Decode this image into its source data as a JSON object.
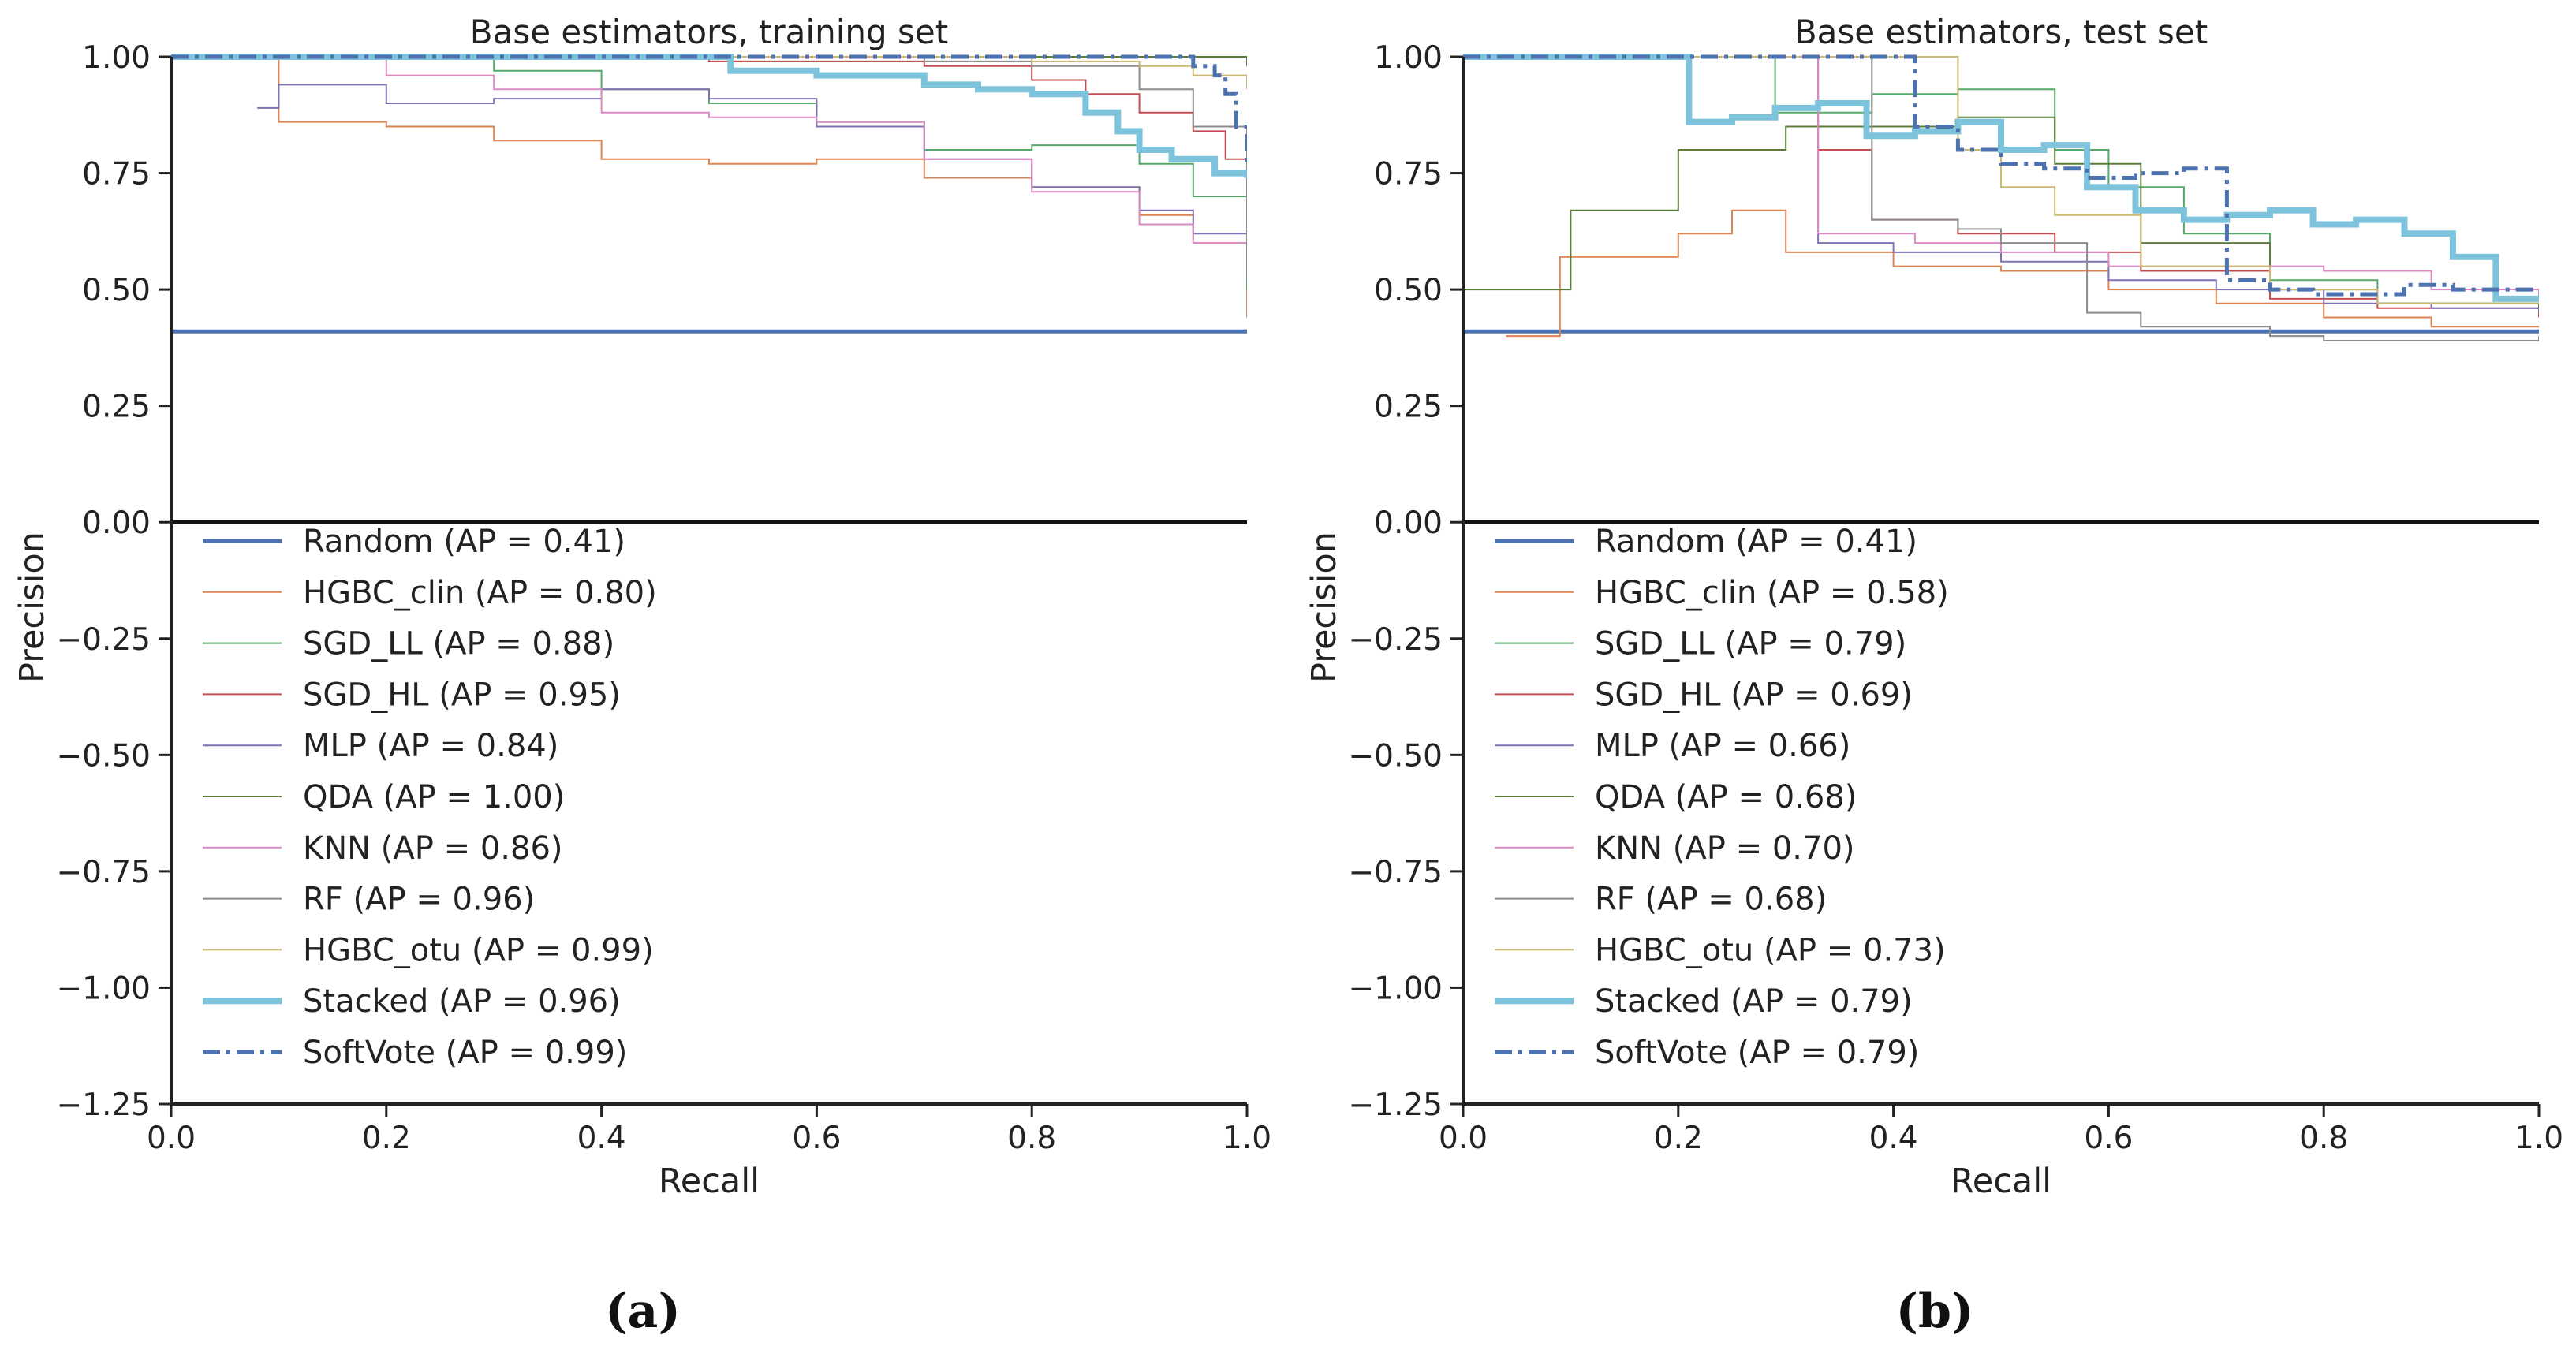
{
  "figure": {
    "caption_a": "(a)",
    "caption_b": "(b)"
  },
  "chart_data": [
    {
      "type": "line",
      "title": "Base estimators, training set",
      "xlabel": "Recall",
      "ylabel": "Precision",
      "xlim": [
        0.0,
        1.0
      ],
      "ylim": [
        -1.25,
        1.0
      ],
      "xticks": [
        "0.0",
        "0.2",
        "0.4",
        "0.6",
        "0.8",
        "1.0"
      ],
      "yticks": [
        "1.00",
        "0.75",
        "0.50",
        "0.25",
        "0.00",
        "−0.25",
        "−0.50",
        "−0.75",
        "−1.00",
        "−1.25"
      ],
      "legend_position": "lower-left",
      "series": [
        {
          "name": "Random (AP = 0.41)",
          "color": "#4c72b0",
          "style": "solid",
          "width": 5,
          "x": [
            0.0,
            1.0
          ],
          "y": [
            0.41,
            0.41
          ]
        },
        {
          "name": "HGBC_clin (AP = 0.80)",
          "color": "#dd8452",
          "style": "solid",
          "width": 2,
          "x": [
            0.0,
            0.1,
            0.2,
            0.3,
            0.4,
            0.5,
            0.6,
            0.7,
            0.8,
            0.9,
            0.95,
            1.0
          ],
          "y": [
            1.0,
            0.86,
            0.85,
            0.82,
            0.78,
            0.77,
            0.78,
            0.74,
            0.72,
            0.66,
            0.6,
            0.44
          ]
        },
        {
          "name": "SGD_LL (AP = 0.88)",
          "color": "#55a868",
          "style": "solid",
          "width": 2,
          "x": [
            0.0,
            0.3,
            0.4,
            0.5,
            0.6,
            0.7,
            0.8,
            0.9,
            0.95,
            1.0
          ],
          "y": [
            1.0,
            0.97,
            0.93,
            0.9,
            0.86,
            0.8,
            0.81,
            0.77,
            0.7,
            0.5
          ]
        },
        {
          "name": "SGD_HL (AP = 0.95)",
          "color": "#c44e52",
          "style": "solid",
          "width": 2,
          "x": [
            0.0,
            0.3,
            0.5,
            0.7,
            0.8,
            0.85,
            0.9,
            0.95,
            0.98,
            1.0
          ],
          "y": [
            1.0,
            1.0,
            0.99,
            0.98,
            0.95,
            0.92,
            0.88,
            0.84,
            0.78,
            0.72
          ]
        },
        {
          "name": "MLP (AP = 0.84)",
          "color": "#8172b3",
          "style": "solid",
          "width": 2,
          "x": [
            0.08,
            0.1,
            0.2,
            0.3,
            0.4,
            0.5,
            0.6,
            0.7,
            0.8,
            0.9,
            0.95,
            1.0
          ],
          "y": [
            0.89,
            0.94,
            0.9,
            0.91,
            0.93,
            0.91,
            0.85,
            0.78,
            0.72,
            0.67,
            0.62,
            0.55
          ]
        },
        {
          "name": "QDA (AP = 1.00)",
          "color": "#5a7d3a",
          "style": "solid",
          "width": 2,
          "x": [
            0.0,
            1.0
          ],
          "y": [
            1.0,
            0.98
          ]
        },
        {
          "name": "KNN (AP = 0.86)",
          "color": "#da8bc3",
          "style": "solid",
          "width": 2,
          "x": [
            0.0,
            0.2,
            0.3,
            0.4,
            0.5,
            0.6,
            0.7,
            0.8,
            0.9,
            0.95,
            1.0
          ],
          "y": [
            1.0,
            0.96,
            0.93,
            0.88,
            0.87,
            0.86,
            0.78,
            0.71,
            0.64,
            0.6,
            0.56
          ]
        },
        {
          "name": "RF (AP = 0.96)",
          "color": "#8c8c8c",
          "style": "solid",
          "width": 2,
          "x": [
            0.0,
            0.5,
            0.7,
            0.8,
            0.9,
            0.95,
            1.0
          ],
          "y": [
            1.0,
            1.0,
            0.99,
            0.98,
            0.93,
            0.85,
            0.52
          ]
        },
        {
          "name": "HGBC_otu (AP = 0.99)",
          "color": "#ccb974",
          "style": "solid",
          "width": 2,
          "x": [
            0.0,
            0.6,
            0.8,
            0.9,
            0.95,
            1.0
          ],
          "y": [
            1.0,
            1.0,
            0.99,
            0.98,
            0.96,
            0.93
          ]
        },
        {
          "name": "Stacked (AP = 0.96)",
          "color": "#7ec3dc",
          "style": "solid",
          "width": 8,
          "x": [
            0.0,
            0.52,
            0.6,
            0.7,
            0.75,
            0.8,
            0.85,
            0.88,
            0.9,
            0.93,
            0.97,
            1.0
          ],
          "y": [
            1.0,
            0.97,
            0.96,
            0.94,
            0.93,
            0.92,
            0.88,
            0.84,
            0.8,
            0.78,
            0.75,
            0.74
          ]
        },
        {
          "name": "SoftVote (AP = 0.99)",
          "color": "#4c72b0",
          "style": "dashdot",
          "width": 5,
          "x": [
            0.0,
            0.9,
            0.95,
            0.97,
            0.98,
            0.99,
            1.0
          ],
          "y": [
            1.0,
            1.0,
            0.98,
            0.96,
            0.92,
            0.85,
            0.77
          ]
        }
      ]
    },
    {
      "type": "line",
      "title": "Base estimators, test set",
      "xlabel": "Recall",
      "ylabel": "Precision",
      "xlim": [
        0.0,
        1.0
      ],
      "ylim": [
        -1.25,
        1.0
      ],
      "xticks": [
        "0.0",
        "0.2",
        "0.4",
        "0.6",
        "0.8",
        "1.0"
      ],
      "yticks": [
        "1.00",
        "0.75",
        "0.50",
        "0.25",
        "0.00",
        "−0.25",
        "−0.50",
        "−0.75",
        "−1.00",
        "−1.25"
      ],
      "legend_position": "lower-left",
      "series": [
        {
          "name": "Random (AP = 0.41)",
          "color": "#4c72b0",
          "style": "solid",
          "width": 5,
          "x": [
            0.0,
            1.0
          ],
          "y": [
            0.41,
            0.41
          ]
        },
        {
          "name": "HGBC_clin (AP = 0.58)",
          "color": "#dd8452",
          "style": "solid",
          "width": 2,
          "x": [
            0.04,
            0.09,
            0.2,
            0.25,
            0.3,
            0.4,
            0.5,
            0.6,
            0.7,
            0.8,
            0.9,
            1.0
          ],
          "y": [
            0.4,
            0.57,
            0.62,
            0.67,
            0.58,
            0.55,
            0.54,
            0.5,
            0.47,
            0.44,
            0.42,
            0.42
          ]
        },
        {
          "name": "SGD_LL (AP = 0.79)",
          "color": "#55a868",
          "style": "solid",
          "width": 2,
          "x": [
            0.0,
            0.29,
            0.38,
            0.46,
            0.55,
            0.6,
            0.67,
            0.75,
            0.85,
            1.0
          ],
          "y": [
            1.0,
            0.88,
            0.92,
            0.93,
            0.8,
            0.72,
            0.62,
            0.52,
            0.47,
            0.46
          ]
        },
        {
          "name": "SGD_HL (AP = 0.69)",
          "color": "#c44e52",
          "style": "solid",
          "width": 2,
          "x": [
            0.0,
            0.33,
            0.38,
            0.46,
            0.55,
            0.63,
            0.75,
            0.85,
            1.0
          ],
          "y": [
            1.0,
            0.8,
            0.65,
            0.62,
            0.58,
            0.54,
            0.48,
            0.46,
            0.44
          ]
        },
        {
          "name": "MLP (AP = 0.66)",
          "color": "#8172b3",
          "style": "solid",
          "width": 2,
          "x": [
            0.0,
            0.33,
            0.4,
            0.5,
            0.6,
            0.7,
            0.8,
            0.9,
            1.0
          ],
          "y": [
            1.0,
            0.6,
            0.58,
            0.56,
            0.52,
            0.5,
            0.47,
            0.46,
            0.45
          ]
        },
        {
          "name": "QDA (AP = 0.68)",
          "color": "#5a7d3a",
          "style": "solid",
          "width": 2,
          "x": [
            0.0,
            0.04,
            0.1,
            0.2,
            0.3,
            0.46,
            0.55,
            0.63,
            0.75,
            0.85,
            1.0
          ],
          "y": [
            0.5,
            0.5,
            0.67,
            0.8,
            0.85,
            0.87,
            0.77,
            0.6,
            0.5,
            0.47,
            0.46
          ]
        },
        {
          "name": "KNN (AP = 0.70)",
          "color": "#da8bc3",
          "style": "solid",
          "width": 2,
          "x": [
            0.0,
            0.33,
            0.42,
            0.5,
            0.6,
            0.8,
            0.9,
            1.0
          ],
          "y": [
            1.0,
            0.62,
            0.6,
            0.58,
            0.55,
            0.54,
            0.5,
            0.48
          ]
        },
        {
          "name": "RF (AP = 0.68)",
          "color": "#8c8c8c",
          "style": "solid",
          "width": 2,
          "x": [
            0.0,
            0.38,
            0.46,
            0.5,
            0.58,
            0.63,
            0.75,
            0.8,
            0.9,
            1.0
          ],
          "y": [
            1.0,
            0.65,
            0.63,
            0.6,
            0.45,
            0.42,
            0.4,
            0.39,
            0.39,
            0.4
          ]
        },
        {
          "name": "HGBC_otu (AP = 0.73)",
          "color": "#ccb974",
          "style": "solid",
          "width": 2,
          "x": [
            0.0,
            0.46,
            0.5,
            0.55,
            0.63,
            0.75,
            0.85,
            1.0
          ],
          "y": [
            1.0,
            0.8,
            0.72,
            0.66,
            0.55,
            0.5,
            0.47,
            0.47
          ]
        },
        {
          "name": "Stacked (AP = 0.79)",
          "color": "#7ec3dc",
          "style": "solid",
          "width": 8,
          "x": [
            0.0,
            0.21,
            0.25,
            0.29,
            0.33,
            0.375,
            0.42,
            0.46,
            0.5,
            0.54,
            0.58,
            0.625,
            0.67,
            0.71,
            0.75,
            0.79,
            0.83,
            0.875,
            0.92,
            0.96,
            1.0
          ],
          "y": [
            1.0,
            0.86,
            0.87,
            0.89,
            0.9,
            0.83,
            0.84,
            0.86,
            0.8,
            0.81,
            0.72,
            0.67,
            0.65,
            0.66,
            0.67,
            0.64,
            0.65,
            0.62,
            0.57,
            0.48,
            0.48
          ]
        },
        {
          "name": "SoftVote (AP = 0.79)",
          "color": "#4c72b0",
          "style": "dashdot",
          "width": 5,
          "x": [
            0.0,
            0.42,
            0.46,
            0.5,
            0.54,
            0.58,
            0.625,
            0.67,
            0.71,
            0.75,
            0.79,
            0.83,
            0.875,
            0.92,
            0.96,
            1.0
          ],
          "y": [
            1.0,
            0.85,
            0.8,
            0.77,
            0.76,
            0.74,
            0.75,
            0.76,
            0.52,
            0.5,
            0.49,
            0.49,
            0.51,
            0.5,
            0.5,
            0.5
          ]
        }
      ]
    }
  ]
}
